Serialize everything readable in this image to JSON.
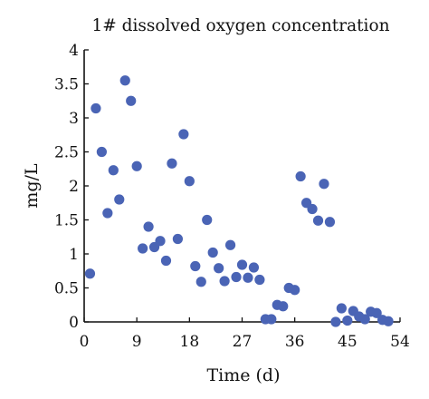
{
  "chart_data": {
    "type": "scatter",
    "title": "1# dissolved oxygen concentration",
    "xlabel": "Time (d)",
    "ylabel": "mg/L",
    "xlim": [
      0,
      54
    ],
    "ylim": [
      0,
      4
    ],
    "xticks": [
      0,
      9,
      18,
      27,
      36,
      45,
      54
    ],
    "yticks": [
      0,
      0.5,
      1,
      1.5,
      2,
      2.5,
      3,
      3.5,
      4
    ],
    "xtick_labels": [
      "0",
      "9",
      "18",
      "27",
      "36",
      "45",
      "54"
    ],
    "ytick_labels": [
      "0",
      "0.5",
      "1",
      "1.5",
      "2",
      "2.5",
      "3",
      "3.5",
      "4"
    ],
    "grid": false,
    "color": "#4A64B5",
    "series": [
      {
        "points": [
          [
            1,
            0.71
          ],
          [
            2,
            3.14
          ],
          [
            3,
            2.5
          ],
          [
            4,
            1.6
          ],
          [
            5,
            2.23
          ],
          [
            6,
            1.8
          ],
          [
            7,
            3.55
          ],
          [
            8,
            3.25
          ],
          [
            9,
            2.29
          ],
          [
            10,
            1.08
          ],
          [
            11,
            1.4
          ],
          [
            12,
            1.1
          ],
          [
            13,
            1.19
          ],
          [
            14,
            0.9
          ],
          [
            15,
            2.33
          ],
          [
            16,
            1.22
          ],
          [
            17,
            2.76
          ],
          [
            18,
            2.07
          ],
          [
            19,
            0.82
          ],
          [
            20,
            0.59
          ],
          [
            21,
            1.5
          ],
          [
            22,
            1.02
          ],
          [
            23,
            0.79
          ],
          [
            24,
            0.6
          ],
          [
            25,
            1.13
          ],
          [
            26,
            0.66
          ],
          [
            27,
            0.84
          ],
          [
            28,
            0.65
          ],
          [
            29,
            0.8
          ],
          [
            30,
            0.62
          ],
          [
            31,
            0.04
          ],
          [
            32,
            0.04
          ],
          [
            33,
            0.25
          ],
          [
            34,
            0.23
          ],
          [
            35,
            0.5
          ],
          [
            36,
            0.47
          ],
          [
            37,
            2.14
          ],
          [
            38,
            1.75
          ],
          [
            39,
            1.66
          ],
          [
            40,
            1.49
          ],
          [
            41,
            2.03
          ],
          [
            42,
            1.47
          ],
          [
            43,
            0.0
          ],
          [
            44,
            0.2
          ],
          [
            45,
            0.02
          ],
          [
            46,
            0.16
          ],
          [
            47,
            0.08
          ],
          [
            48,
            0.04
          ],
          [
            49,
            0.15
          ],
          [
            50,
            0.13
          ],
          [
            51,
            0.03
          ],
          [
            52,
            0.01
          ]
        ]
      }
    ]
  }
}
